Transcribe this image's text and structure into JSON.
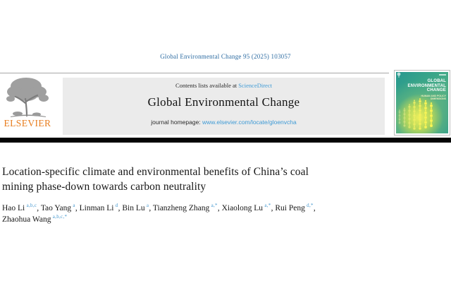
{
  "page": {
    "citation": "Global Environmental Change 95 (2025) 103057"
  },
  "publisher": {
    "name": "ELSEVIER"
  },
  "banner": {
    "contents_prefix": "Contents lists available at ",
    "sciencedirect_label": "ScienceDirect",
    "journal_title": "Global Environmental Change",
    "homepage_prefix": "journal homepage: ",
    "homepage_url": "www.elsevier.com/locate/gloenvcha"
  },
  "cover": {
    "title_lines": [
      "GLOBAL",
      "ENVIRONMENTAL",
      "CHANGE"
    ],
    "subtitle_lines": [
      "HUMAN AND POLICY",
      "DIMENSIONS"
    ]
  },
  "article": {
    "title_line1": "Location-specific climate and environmental benefits of China’s coal",
    "title_line2": "mining phase-down towards carbon neutrality",
    "authors": [
      {
        "name": "Hao Li",
        "sup": "a,b,c",
        "sep": ","
      },
      {
        "name": "Tao Yang",
        "sup": "a",
        "sep": ","
      },
      {
        "name": "Linman Li",
        "sup": "d",
        "sep": ","
      },
      {
        "name": "Bin Lu",
        "sup": "a",
        "sep": ","
      },
      {
        "name": "Tianzheng Zhang",
        "sup": "a,*",
        "sep": ","
      },
      {
        "name": "Xiaolong Lu",
        "sup": "a,*",
        "sep": ","
      },
      {
        "name": "Rui Peng",
        "sup": "d,*",
        "sep": ",",
        "break_after": true
      },
      {
        "name": "Zhaohua Wang",
        "sup": "a,b,c,*",
        "sep": ""
      }
    ]
  },
  "colors": {
    "citation_blue": "#2d6ca2",
    "link_blue": "#3e9ad5",
    "elsevier_orange": "#e87d1e",
    "banner_gray": "#ebebeb",
    "cover_teal": "#2f9c8c",
    "cover_yellow": "#f6f35a"
  }
}
